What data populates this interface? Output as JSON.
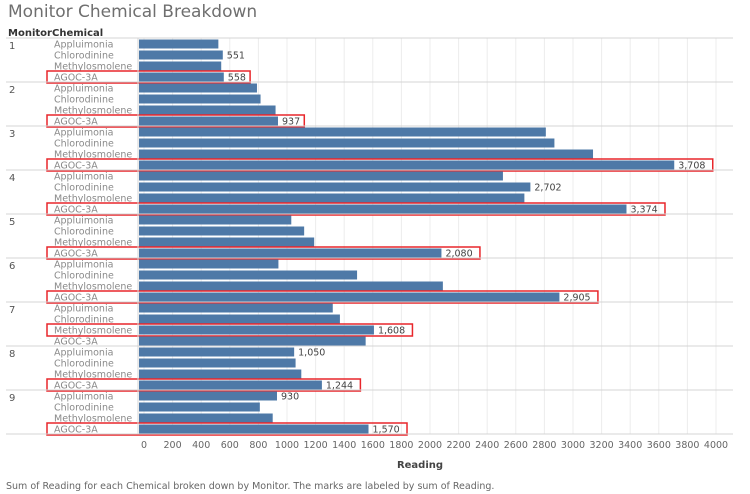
{
  "chart_data": {
    "type": "bar",
    "orientation": "horizontal",
    "title": "Monitor Chemical Breakdown",
    "row_headers": [
      "Monitor",
      "Chemical"
    ],
    "xlabel": "Reading",
    "xlim": [
      0,
      4000
    ],
    "xticks": [
      0,
      200,
      400,
      600,
      800,
      1000,
      1200,
      1400,
      1600,
      1800,
      2000,
      2200,
      2400,
      2600,
      2800,
      3000,
      3200,
      3400,
      3600,
      3800,
      4000
    ],
    "bar_color": "#4e79a7",
    "highlight_color": "#e8262b",
    "caption": "Sum of Reading for each Chemical broken down by Monitor.  The marks are labeled by sum of Reading.",
    "groups": [
      {
        "monitor": "1",
        "bars": [
          {
            "chemical": "Appluimonia",
            "value": 520,
            "label": ""
          },
          {
            "chemical": "Chlorodinine",
            "value": 551,
            "label": "551"
          },
          {
            "chemical": "Methylosmolene",
            "value": 540,
            "label": ""
          },
          {
            "chemical": "AGOC-3A",
            "value": 558,
            "label": "558",
            "highlight": true
          }
        ]
      },
      {
        "monitor": "2",
        "bars": [
          {
            "chemical": "Appluimonia",
            "value": 790,
            "label": ""
          },
          {
            "chemical": "Chlorodinine",
            "value": 815,
            "label": ""
          },
          {
            "chemical": "Methylosmolene",
            "value": 920,
            "label": ""
          },
          {
            "chemical": "AGOC-3A",
            "value": 937,
            "label": "937",
            "highlight": true
          }
        ]
      },
      {
        "monitor": "3",
        "bars": [
          {
            "chemical": "Appluimonia",
            "value": 2810,
            "label": ""
          },
          {
            "chemical": "Chlorodinine",
            "value": 2870,
            "label": ""
          },
          {
            "chemical": "Methylosmolene",
            "value": 3140,
            "label": ""
          },
          {
            "chemical": "AGOC-3A",
            "value": 3708,
            "label": "3,708",
            "highlight": true
          }
        ]
      },
      {
        "monitor": "4",
        "bars": [
          {
            "chemical": "Appluimonia",
            "value": 2510,
            "label": ""
          },
          {
            "chemical": "Chlorodinine",
            "value": 2702,
            "label": "2,702"
          },
          {
            "chemical": "Methylosmolene",
            "value": 2660,
            "label": ""
          },
          {
            "chemical": "AGOC-3A",
            "value": 3374,
            "label": "3,374",
            "highlight": true
          }
        ]
      },
      {
        "monitor": "5",
        "bars": [
          {
            "chemical": "Appluimonia",
            "value": 1030,
            "label": ""
          },
          {
            "chemical": "Chlorodinine",
            "value": 1120,
            "label": ""
          },
          {
            "chemical": "Methylosmolene",
            "value": 1190,
            "label": ""
          },
          {
            "chemical": "AGOC-3A",
            "value": 2080,
            "label": "2,080",
            "highlight": true
          }
        ]
      },
      {
        "monitor": "6",
        "bars": [
          {
            "chemical": "Appluimonia",
            "value": 940,
            "label": ""
          },
          {
            "chemical": "Chlorodinine",
            "value": 1490,
            "label": ""
          },
          {
            "chemical": "Methylosmolene",
            "value": 2090,
            "label": ""
          },
          {
            "chemical": "AGOC-3A",
            "value": 2905,
            "label": "2,905",
            "highlight": true
          }
        ]
      },
      {
        "monitor": "7",
        "bars": [
          {
            "chemical": "Appluimonia",
            "value": 1320,
            "label": ""
          },
          {
            "chemical": "Chlorodinine",
            "value": 1370,
            "label": ""
          },
          {
            "chemical": "Methylosmolene",
            "value": 1608,
            "label": "1,608",
            "highlight": true
          },
          {
            "chemical": "AGOC-3A",
            "value": 1550,
            "label": ""
          }
        ]
      },
      {
        "monitor": "8",
        "bars": [
          {
            "chemical": "Appluimonia",
            "value": 1050,
            "label": "1,050"
          },
          {
            "chemical": "Chlorodinine",
            "value": 1060,
            "label": ""
          },
          {
            "chemical": "Methylosmolene",
            "value": 1100,
            "label": ""
          },
          {
            "chemical": "AGOC-3A",
            "value": 1244,
            "label": "1,244",
            "highlight": true
          }
        ]
      },
      {
        "monitor": "9",
        "bars": [
          {
            "chemical": "Appluimonia",
            "value": 930,
            "label": "930"
          },
          {
            "chemical": "Chlorodinine",
            "value": 810,
            "label": ""
          },
          {
            "chemical": "Methylosmolene",
            "value": 900,
            "label": ""
          },
          {
            "chemical": "AGOC-3A",
            "value": 1570,
            "label": "1,570",
            "highlight": true
          }
        ]
      }
    ]
  }
}
